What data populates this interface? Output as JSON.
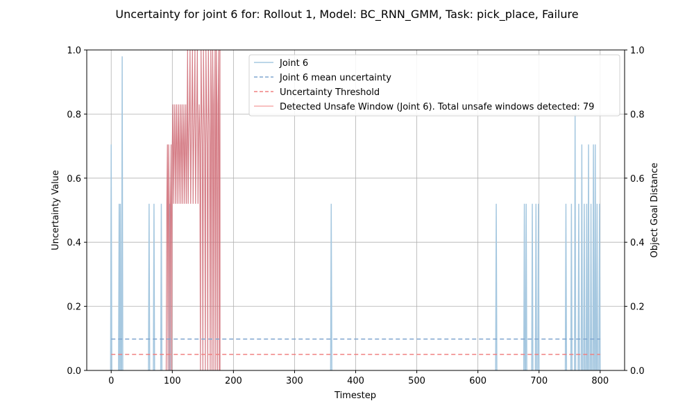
{
  "chart_data": {
    "type": "line",
    "title": "Uncertainty for joint 6 for: Rollout 1, Model: BC_RNN_GMM, Task: pick_place, Failure",
    "xlabel": "Timestep",
    "ylabel": "Uncertainty Value",
    "y2label": "Object Goal Distance",
    "xlim": [
      -40,
      840
    ],
    "ylim": [
      0,
      1
    ],
    "y2lim": [
      0,
      1
    ],
    "x_ticks": [
      0,
      100,
      200,
      300,
      400,
      500,
      600,
      700,
      800
    ],
    "y_ticks": [
      0.0,
      0.2,
      0.4,
      0.6,
      0.8,
      1.0
    ],
    "y_tick_labels": [
      "0.0",
      "0.2",
      "0.4",
      "0.6",
      "0.8",
      "1.0"
    ],
    "grid": true,
    "legend_position": "top-right",
    "legend": [
      "Joint 6",
      "Joint 6 mean uncertainty",
      "Uncertainty Threshold",
      "Detected Unsafe Window (Joint 6). Total unsafe windows detected: 79"
    ],
    "colors": {
      "joint": "#a6c8e0",
      "mean": "#7fa6cf",
      "threshold": "#f08080",
      "unsafe": "#d0707a",
      "grid": "#b0b0b0"
    },
    "series": [
      {
        "name": "Joint 6",
        "style": "solid",
        "spikes": [
          {
            "x": 0,
            "y": 0.705
          },
          {
            "x": 13,
            "y": 0.52
          },
          {
            "x": 15,
            "y": 0.52
          },
          {
            "x": 18,
            "y": 0.98
          },
          {
            "x": 62,
            "y": 0.52
          },
          {
            "x": 70,
            "y": 0.52
          },
          {
            "x": 82,
            "y": 0.52
          },
          {
            "x": 96,
            "y": 0.52
          },
          {
            "x": 360,
            "y": 0.52
          },
          {
            "x": 630,
            "y": 0.52
          },
          {
            "x": 676,
            "y": 0.52
          },
          {
            "x": 679,
            "y": 0.52
          },
          {
            "x": 689,
            "y": 0.52
          },
          {
            "x": 695,
            "y": 0.52
          },
          {
            "x": 699,
            "y": 0.52
          },
          {
            "x": 744,
            "y": 0.52
          },
          {
            "x": 753,
            "y": 0.52
          },
          {
            "x": 759,
            "y": 0.8
          },
          {
            "x": 765,
            "y": 0.52
          },
          {
            "x": 770,
            "y": 0.705
          },
          {
            "x": 774,
            "y": 0.52
          },
          {
            "x": 778,
            "y": 0.52
          },
          {
            "x": 781,
            "y": 0.705
          },
          {
            "x": 785,
            "y": 0.52
          },
          {
            "x": 789,
            "y": 0.705
          },
          {
            "x": 792,
            "y": 0.705
          },
          {
            "x": 795,
            "y": 0.52
          },
          {
            "x": 799,
            "y": 0.52
          }
        ]
      },
      {
        "name": "Joint 6 mean uncertainty",
        "style": "dashed",
        "x": [
          0,
          800
        ],
        "y": [
          0.098,
          0.098
        ]
      },
      {
        "name": "Uncertainty Threshold",
        "style": "dashed",
        "x": [
          0,
          800
        ],
        "y": [
          0.05,
          0.05
        ]
      },
      {
        "name": "Detected Unsafe Window (Joint 6). Total unsafe windows detected: 79",
        "style": "solid",
        "x_range": [
          90,
          178
        ],
        "levels": [
          0.52,
          0.705,
          0.83,
          1.0
        ]
      }
    ]
  }
}
